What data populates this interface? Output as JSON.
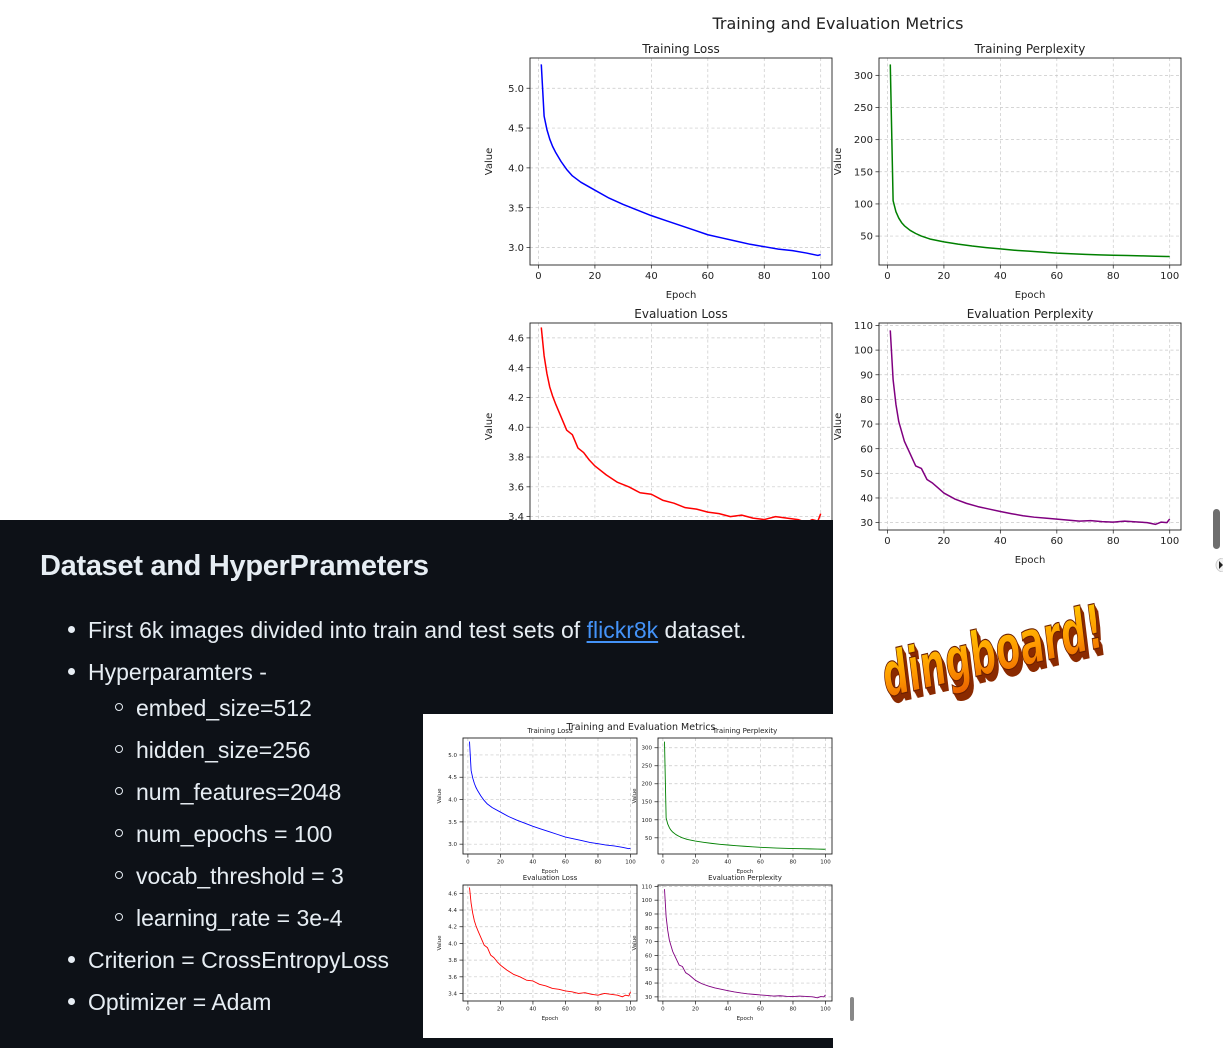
{
  "figure": {
    "suptitle": "Training and Evaluation Metrics"
  },
  "chart_data": [
    {
      "type": "line",
      "title": "Training Loss",
      "xlabel": "Epoch",
      "ylabel": "Value",
      "color": "#0000ff",
      "xlim": [
        -3,
        104
      ],
      "ylim": [
        2.78,
        5.38
      ],
      "xticks": [
        0,
        20,
        40,
        60,
        80,
        100
      ],
      "yticks": [
        3.0,
        3.5,
        4.0,
        4.5,
        5.0
      ],
      "ytick_labels": [
        "3.0",
        "3.5",
        "4.0",
        "4.5",
        "5.0"
      ],
      "grid": true,
      "x": [
        1,
        2,
        3,
        4,
        5,
        6,
        8,
        10,
        12,
        15,
        20,
        25,
        30,
        35,
        40,
        45,
        50,
        55,
        60,
        65,
        70,
        75,
        80,
        85,
        90,
        95,
        99,
        100
      ],
      "y": [
        5.3,
        4.65,
        4.48,
        4.36,
        4.27,
        4.2,
        4.08,
        3.98,
        3.9,
        3.82,
        3.72,
        3.62,
        3.54,
        3.47,
        3.4,
        3.34,
        3.28,
        3.22,
        3.16,
        3.12,
        3.08,
        3.04,
        3.01,
        2.98,
        2.96,
        2.93,
        2.9,
        2.91
      ]
    },
    {
      "type": "line",
      "title": "Training Perplexity",
      "xlabel": "Epoch",
      "ylabel": "Value",
      "color": "#008000",
      "xlim": [
        -3,
        104
      ],
      "ylim": [
        5,
        327
      ],
      "xticks": [
        0,
        20,
        40,
        60,
        80,
        100
      ],
      "yticks": [
        50,
        100,
        150,
        200,
        250,
        300
      ],
      "ytick_labels": [
        "50",
        "100",
        "150",
        "200",
        "250",
        "300"
      ],
      "grid": true,
      "x": [
        1,
        2,
        3,
        4,
        5,
        6,
        8,
        10,
        12,
        15,
        20,
        25,
        30,
        35,
        40,
        45,
        50,
        55,
        60,
        65,
        70,
        75,
        80,
        85,
        90,
        95,
        99,
        100
      ],
      "y": [
        317,
        105,
        88,
        78,
        71,
        66,
        59,
        54,
        50,
        45.5,
        41,
        37.5,
        34.5,
        32,
        30,
        28,
        26.5,
        25,
        23.5,
        22.5,
        21.5,
        20.8,
        20.2,
        19.7,
        19.2,
        18.7,
        18.2,
        18.3
      ]
    },
    {
      "type": "line",
      "title": "Evaluation Loss",
      "xlabel": "Epoch",
      "ylabel": "Value",
      "color": "#ff0000",
      "xlim": [
        -3,
        104
      ],
      "ylim": [
        3.31,
        4.7
      ],
      "xticks": [
        0,
        20,
        40,
        60,
        80,
        100
      ],
      "yticks": [
        3.4,
        3.6,
        3.8,
        4.0,
        4.2,
        4.4,
        4.6
      ],
      "ytick_labels": [
        "3.4",
        "3.6",
        "3.8",
        "4.0",
        "4.2",
        "4.4",
        "4.6"
      ],
      "grid": true,
      "x": [
        1,
        2,
        3,
        4,
        5,
        6,
        8,
        10,
        12,
        14,
        16,
        18,
        20,
        24,
        28,
        32,
        36,
        40,
        44,
        48,
        52,
        56,
        60,
        64,
        68,
        72,
        76,
        80,
        84,
        88,
        92,
        95,
        97,
        99,
        100
      ],
      "y": [
        4.67,
        4.48,
        4.36,
        4.27,
        4.21,
        4.16,
        4.07,
        3.98,
        3.95,
        3.86,
        3.83,
        3.78,
        3.74,
        3.68,
        3.63,
        3.6,
        3.56,
        3.55,
        3.51,
        3.49,
        3.46,
        3.45,
        3.43,
        3.42,
        3.4,
        3.41,
        3.39,
        3.38,
        3.4,
        3.39,
        3.38,
        3.36,
        3.38,
        3.37,
        3.42
      ]
    },
    {
      "type": "line",
      "title": "Evaluation Perplexity",
      "xlabel": "Epoch",
      "ylabel": "Value",
      "color": "#800080",
      "xlim": [
        -3,
        104
      ],
      "ylim": [
        27,
        111
      ],
      "xticks": [
        0,
        20,
        40,
        60,
        80,
        100
      ],
      "yticks": [
        30,
        40,
        50,
        60,
        70,
        80,
        90,
        100,
        110
      ],
      "ytick_labels": [
        "30",
        "40",
        "50",
        "60",
        "70",
        "80",
        "90",
        "100",
        "110"
      ],
      "grid": true,
      "x": [
        1,
        2,
        3,
        4,
        5,
        6,
        8,
        10,
        12,
        14,
        16,
        18,
        20,
        24,
        28,
        32,
        36,
        40,
        44,
        48,
        52,
        56,
        60,
        64,
        68,
        72,
        76,
        80,
        84,
        88,
        92,
        95,
        97,
        99,
        100
      ],
      "y": [
        108,
        88,
        78,
        71,
        67,
        63,
        58,
        53,
        52,
        47.5,
        46,
        44,
        42,
        39.5,
        37.8,
        36.5,
        35.5,
        34.5,
        33.6,
        32.8,
        32.2,
        31.8,
        31.4,
        31,
        30.6,
        30.8,
        30.4,
        30.2,
        30.6,
        30.3,
        30,
        29.3,
        30.2,
        30,
        31.5
      ]
    }
  ],
  "article": {
    "heading": "Dataset and HyperPrameters",
    "item1_before": "First 6k images divided into train and test sets of ",
    "item1_link": "flickr8k",
    "item1_after": " dataset.",
    "item2": "Hyperparamters -",
    "sub": [
      "embed_size=512",
      "hidden_size=256",
      "num_features=2048",
      "num_epochs = 100",
      "vocab_threshold = 3",
      "learning_rate = 3e-4"
    ],
    "item3": "Criterion = CrossEntropyLoss",
    "item4": "Optimizer = Adam"
  },
  "logo": {
    "text": "dingboard!",
    "colors": [
      "#ffd200",
      "#ff9a00",
      "#e85d00",
      "#8a2a00"
    ]
  }
}
